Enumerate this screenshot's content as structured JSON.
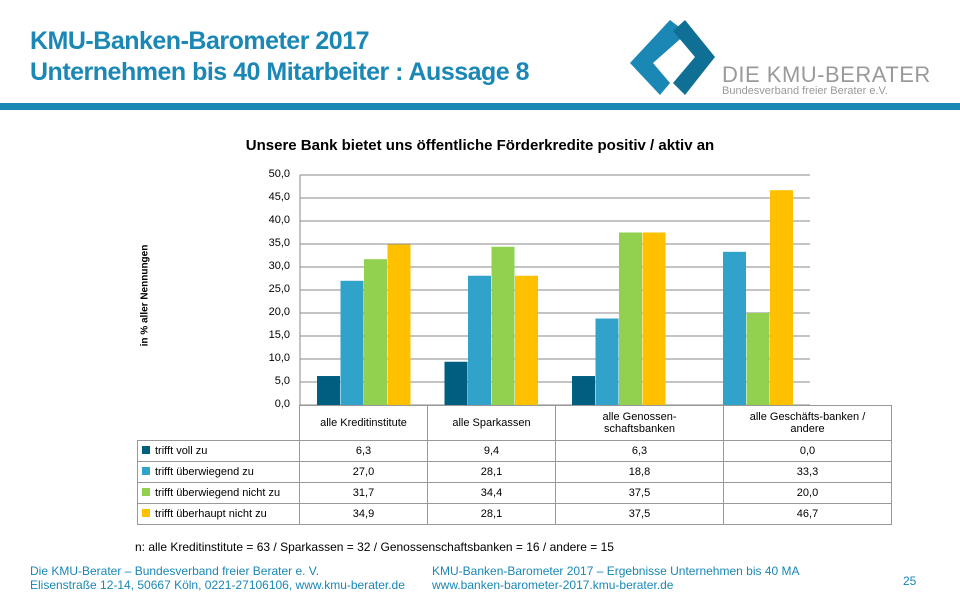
{
  "header": {
    "title_line1": "KMU-Banken-Barometer 2017",
    "title_line2": "Unternehmen bis 40 Mitarbeiter : Aussage 8",
    "logo_name": "DIE KMU-BERATER",
    "logo_sub": "Bundesverband freier Berater e.V."
  },
  "chart_data": {
    "type": "bar",
    "title": "Unsere Bank bietet uns öffentliche Förderkredite positiv / aktiv an",
    "ylabel": "in % aller Nennungen",
    "ylim": [
      0,
      50
    ],
    "yticks": [
      "50,0",
      "45,0",
      "40,0",
      "35,0",
      "30,0",
      "25,0",
      "20,0",
      "15,0",
      "10,0",
      "5,0",
      "0,0"
    ],
    "categories": [
      "alle Kreditinstitute",
      "alle Sparkassen",
      "alle Genossen-schaftsbanken",
      "alle Geschäfts-banken / andere"
    ],
    "series": [
      {
        "name": "trifft voll zu",
        "color": "#005f80",
        "values": [
          6.3,
          9.4,
          6.3,
          0.0
        ],
        "labels": [
          "6,3",
          "9,4",
          "6,3",
          "0,0"
        ]
      },
      {
        "name": "trifft überwiegend zu",
        "color": "#31a2c9",
        "values": [
          27.0,
          28.1,
          18.8,
          33.3
        ],
        "labels": [
          "27,0",
          "28,1",
          "18,8",
          "33,3"
        ]
      },
      {
        "name": "trifft überwiegend nicht zu",
        "color": "#92d050",
        "values": [
          31.7,
          34.4,
          37.5,
          20.0
        ],
        "labels": [
          "31,7",
          "34,4",
          "37,5",
          "20,0"
        ]
      },
      {
        "name": "trifft überhaupt nicht zu",
        "color": "#ffc000",
        "values": [
          34.9,
          28.1,
          37.5,
          46.7
        ],
        "labels": [
          "34,9",
          "28,1",
          "37,5",
          "46,7"
        ]
      }
    ],
    "grid": true
  },
  "note": "n: alle Kreditinstitute = 63  /  Sparkassen = 32  /  Genossenschaftsbanken = 16  /  andere = 15",
  "footer": {
    "left1": "Die KMU-Berater – Bundesverband freier Berater e. V.",
    "left2": "Elisenstraße 12-14, 50667 Köln, 0221-27106106, www.kmu-berater.de",
    "mid1": "KMU-Banken-Barometer 2017 – Ergebnisse Unternehmen bis 40 MA",
    "mid2": "www.banken-barometer-2017.kmu-berater.de",
    "page": "25"
  }
}
